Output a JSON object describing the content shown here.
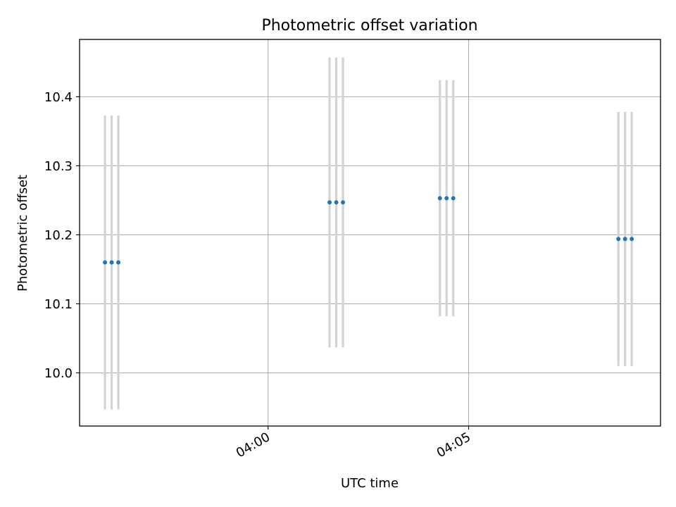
{
  "chart_data": {
    "type": "scatter",
    "title": "Photometric offset variation",
    "xlabel": "UTC time",
    "ylabel": "Photometric offset",
    "x_axis": "time (HH:MM)",
    "xlim": [
      "03:55:18",
      "04:09:47"
    ],
    "ylim": [
      9.923,
      10.483
    ],
    "xticks": [
      "04:00",
      "04:05"
    ],
    "yticks": [
      10.0,
      10.1,
      10.2,
      10.3,
      10.4
    ],
    "ytick_labels": [
      "10.0",
      "10.1",
      "10.2",
      "10.3",
      "10.4"
    ],
    "grid": true,
    "errorbar_color": "#d3d3d3",
    "point_color": "#1f77b4",
    "points": [
      {
        "x": "03:55:56",
        "y": 10.16,
        "err": 0.213
      },
      {
        "x": "03:56:06",
        "y": 10.16,
        "err": 0.213
      },
      {
        "x": "03:56:16",
        "y": 10.16,
        "err": 0.213
      },
      {
        "x": "04:01:32",
        "y": 10.247,
        "err": 0.21
      },
      {
        "x": "04:01:42",
        "y": 10.247,
        "err": 0.21
      },
      {
        "x": "04:01:52",
        "y": 10.247,
        "err": 0.21
      },
      {
        "x": "04:04:17",
        "y": 10.253,
        "err": 0.171
      },
      {
        "x": "04:04:27",
        "y": 10.253,
        "err": 0.171
      },
      {
        "x": "04:04:37",
        "y": 10.253,
        "err": 0.171
      },
      {
        "x": "04:08:44",
        "y": 10.194,
        "err": 0.184
      },
      {
        "x": "04:08:54",
        "y": 10.194,
        "err": 0.184
      },
      {
        "x": "04:09:04",
        "y": 10.194,
        "err": 0.184
      }
    ]
  }
}
